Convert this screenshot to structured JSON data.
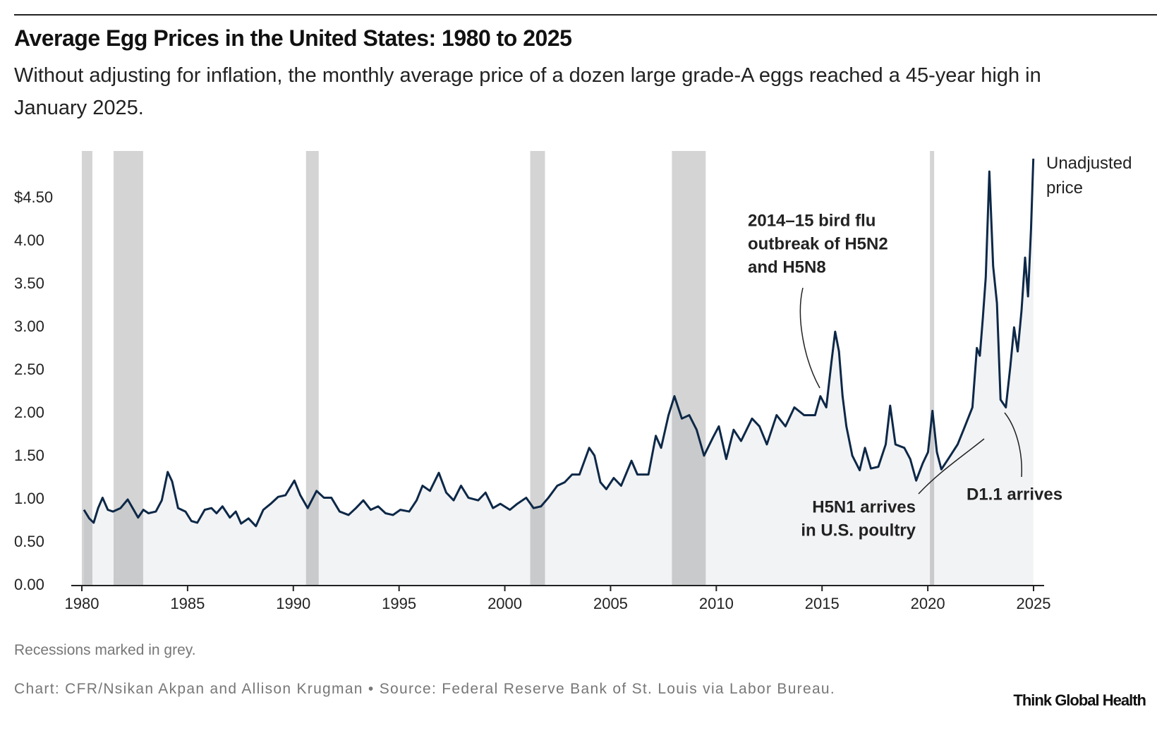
{
  "chart_data": {
    "type": "line",
    "title": "Average Egg Prices in the United States: 1980 to 2025",
    "subtitle": "Without adjusting for inflation, the monthly average price of a dozen large grade-A eggs reached a 45-year high in January 2025.",
    "x": [
      1980.1,
      1980.35,
      1980.56,
      1980.77,
      1980.98,
      1981.23,
      1981.47,
      1981.83,
      1982.17,
      1982.45,
      1982.66,
      1982.91,
      1983.15,
      1983.5,
      1983.78,
      1984.06,
      1984.27,
      1984.55,
      1984.9,
      1985.18,
      1985.46,
      1985.81,
      1986.13,
      1986.37,
      1986.65,
      1987.0,
      1987.28,
      1987.53,
      1987.88,
      1988.23,
      1988.58,
      1988.93,
      1989.28,
      1989.63,
      1990.05,
      1990.33,
      1990.68,
      1991.1,
      1991.45,
      1991.8,
      1992.19,
      1992.61,
      1992.96,
      1993.31,
      1993.66,
      1994.01,
      1994.36,
      1994.71,
      1995.06,
      1995.48,
      1995.83,
      1996.11,
      1996.46,
      1996.88,
      1997.23,
      1997.58,
      1997.93,
      1998.28,
      1998.74,
      1999.09,
      1999.44,
      1999.79,
      2000.24,
      2000.59,
      2001.01,
      2001.36,
      2001.71,
      2002.06,
      2002.48,
      2002.83,
      2003.18,
      2003.53,
      2003.99,
      2004.24,
      2004.52,
      2004.8,
      2005.15,
      2005.5,
      2005.99,
      2006.27,
      2006.79,
      2007.14,
      2007.39,
      2007.74,
      2008.02,
      2008.37,
      2008.72,
      2009.07,
      2009.42,
      2009.84,
      2010.12,
      2010.47,
      2010.82,
      2011.17,
      2011.69,
      2012.04,
      2012.39,
      2012.85,
      2013.27,
      2013.69,
      2014.15,
      2014.67,
      2014.92,
      2015.2,
      2015.44,
      2015.62,
      2015.8,
      2015.97,
      2016.15,
      2016.43,
      2016.78,
      2017.03,
      2017.31,
      2017.66,
      2018.01,
      2018.22,
      2018.47,
      2018.89,
      2019.17,
      2019.45,
      2019.76,
      2020.01,
      2020.22,
      2020.43,
      2020.64,
      2020.99,
      2021.41,
      2021.69,
      2022.11,
      2022.32,
      2022.46,
      2022.6,
      2022.74,
      2022.91,
      2023.09,
      2023.27,
      2023.44,
      2023.69,
      2023.9,
      2024.08,
      2024.25,
      2024.43,
      2024.6,
      2024.74,
      2024.88,
      2024.99
    ],
    "series": [
      {
        "name": "Unadjusted price",
        "color": "#0d2847",
        "values": [
          0.88,
          0.78,
          0.73,
          0.9,
          1.02,
          0.88,
          0.86,
          0.9,
          1.0,
          0.88,
          0.79,
          0.88,
          0.84,
          0.86,
          0.99,
          1.32,
          1.21,
          0.9,
          0.86,
          0.75,
          0.73,
          0.88,
          0.9,
          0.84,
          0.92,
          0.79,
          0.86,
          0.72,
          0.78,
          0.69,
          0.88,
          0.95,
          1.03,
          1.05,
          1.22,
          1.05,
          0.9,
          1.1,
          1.02,
          1.02,
          0.86,
          0.82,
          0.9,
          0.99,
          0.88,
          0.92,
          0.84,
          0.82,
          0.88,
          0.86,
          0.99,
          1.16,
          1.1,
          1.31,
          1.08,
          0.99,
          1.16,
          1.02,
          0.99,
          1.08,
          0.9,
          0.95,
          0.88,
          0.95,
          1.02,
          0.9,
          0.92,
          1.02,
          1.16,
          1.2,
          1.29,
          1.29,
          1.6,
          1.51,
          1.2,
          1.12,
          1.25,
          1.16,
          1.45,
          1.29,
          1.29,
          1.74,
          1.6,
          1.98,
          2.2,
          1.94,
          1.98,
          1.81,
          1.51,
          1.72,
          1.85,
          1.47,
          1.81,
          1.68,
          1.94,
          1.85,
          1.64,
          1.98,
          1.85,
          2.07,
          1.98,
          1.98,
          2.2,
          2.07,
          2.59,
          2.95,
          2.72,
          2.2,
          1.85,
          1.51,
          1.34,
          1.6,
          1.36,
          1.38,
          1.64,
          2.09,
          1.64,
          1.6,
          1.47,
          1.22,
          1.42,
          1.55,
          2.03,
          1.55,
          1.35,
          1.48,
          1.64,
          1.81,
          2.07,
          2.76,
          2.67,
          3.1,
          3.58,
          4.81,
          3.71,
          3.28,
          2.16,
          2.07,
          2.54,
          3.0,
          2.72,
          3.19,
          3.81,
          3.36,
          4.14,
          4.96
        ]
      }
    ],
    "area_color": "#f2f3f5",
    "recessions": [
      [
        1980.0,
        1980.5
      ],
      [
        1981.5,
        1982.9
      ],
      [
        1990.6,
        1991.2
      ],
      [
        2001.2,
        2001.9
      ],
      [
        2007.9,
        2009.5
      ],
      [
        2020.1,
        2020.3
      ]
    ],
    "recession_color": "#000000",
    "xlim": [
      1979.5,
      2025.5
    ],
    "xticks": [
      1980,
      1985,
      1990,
      1995,
      2000,
      2005,
      2010,
      2015,
      2020,
      2025
    ],
    "ylim": [
      0,
      5
    ],
    "yticks": [
      {
        "value": 0,
        "label": "0.00"
      },
      {
        "value": 0.5,
        "label": "0.50"
      },
      {
        "value": 1,
        "label": "1.00"
      },
      {
        "value": 1.5,
        "label": "1.50"
      },
      {
        "value": 2,
        "label": "2.00"
      },
      {
        "value": 2.5,
        "label": "2.50"
      },
      {
        "value": 3,
        "label": "3.00"
      },
      {
        "value": 3.5,
        "label": "3.50"
      },
      {
        "value": 4,
        "label": "4.00"
      },
      {
        "value": 4.5,
        "label": "$4.50"
      }
    ],
    "annotations": [
      {
        "lines": [
          "2014–15 bird flu",
          "outbreak of H5N2",
          "and H5N8"
        ],
        "color": "#ea6b4b"
      },
      {
        "lines": [
          "H5N1 arrives",
          "in U.S. poultry"
        ],
        "color": "#ea6b4b"
      },
      {
        "lines": [
          "D1.1 arrives"
        ],
        "color": "#ea6b4b"
      }
    ]
  },
  "note": "Recessions marked in grey.",
  "source": "Chart: CFR/Nsikan Akpan and Allison Krugman • Source: Federal Reserve Bank of St. Louis via Labor Bureau.",
  "brand": "Think Global Health"
}
